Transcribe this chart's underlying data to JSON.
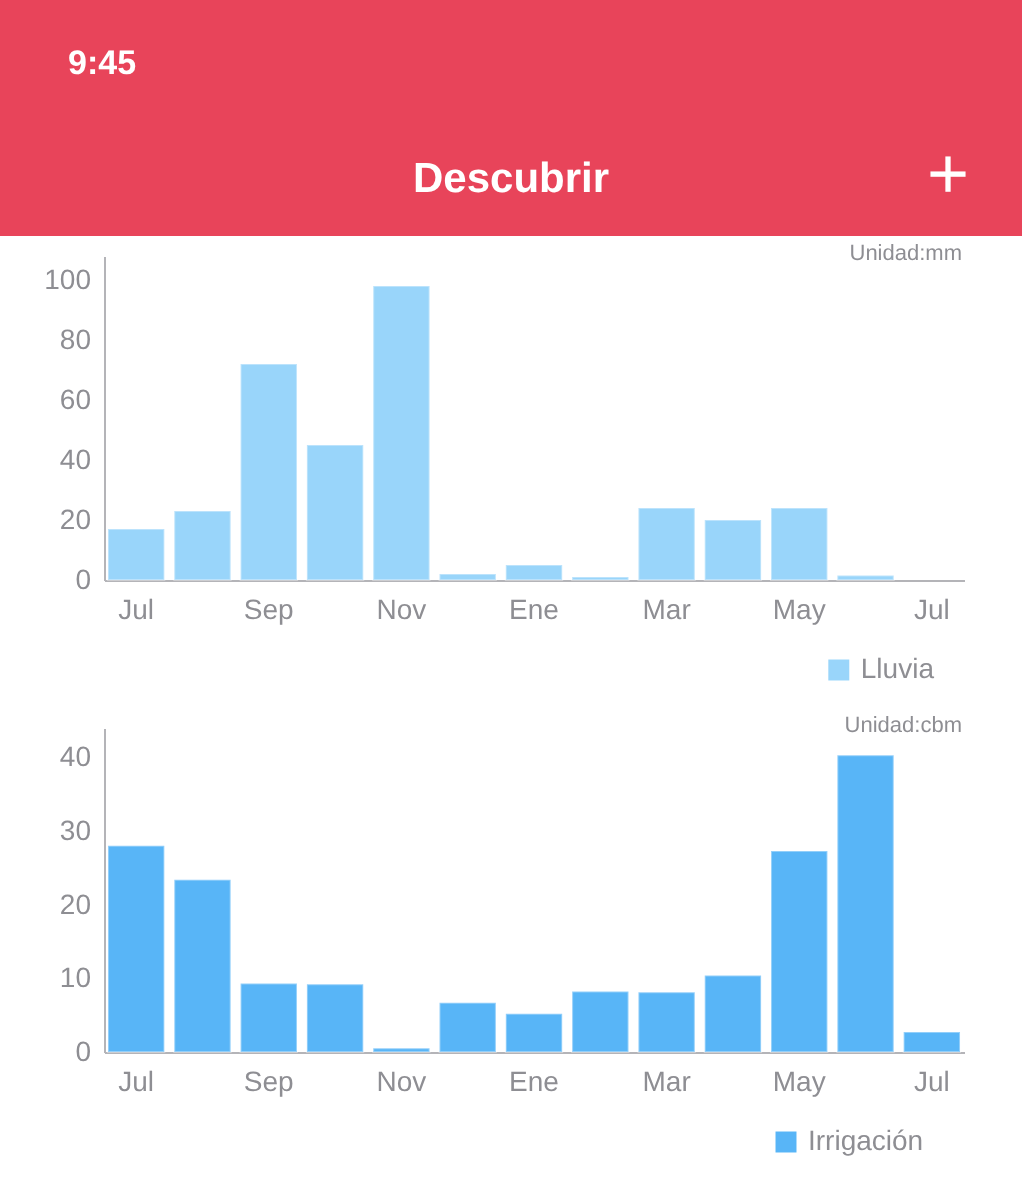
{
  "chart_data": [
    {
      "type": "bar",
      "title": "Descubrir",
      "categories": [
        "Jul",
        null,
        "Sep",
        null,
        "Nov",
        null,
        "Ene",
        null,
        "Mar",
        null,
        "May",
        null,
        "Jul"
      ],
      "series": [
        {
          "name": "Lluvia",
          "color": "#99d5fa",
          "values": [
            17,
            23,
            72,
            45,
            98,
            2,
            5,
            1,
            24,
            20,
            24,
            1.5,
            null
          ]
        }
      ],
      "ylim": [
        0,
        108
      ],
      "yticks": [
        0,
        20,
        40,
        60,
        80,
        100
      ],
      "legend": "bottom right",
      "annotations": [
        "9:45",
        "+",
        "Unidad:mm"
      ]
    },
    {
      "type": "bar",
      "categories": [
        "Jul",
        null,
        "Sep",
        null,
        "Nov",
        null,
        "Ene",
        null,
        "Mar",
        null,
        "May",
        null,
        "Jul"
      ],
      "series": [
        {
          "name": "Irrigación",
          "color": "#58b5f7",
          "values": [
            28,
            23.4,
            9.3,
            9.2,
            0.5,
            6.7,
            5.2,
            8.2,
            8.1,
            10.4,
            27.3,
            40.3,
            2.7
          ]
        }
      ],
      "ylim": [
        0,
        44
      ],
      "yticks": [
        0,
        10,
        20,
        30,
        40
      ],
      "legend": "bottom right",
      "annotations": [
        "Unidad:cbm"
      ]
    }
  ]
}
